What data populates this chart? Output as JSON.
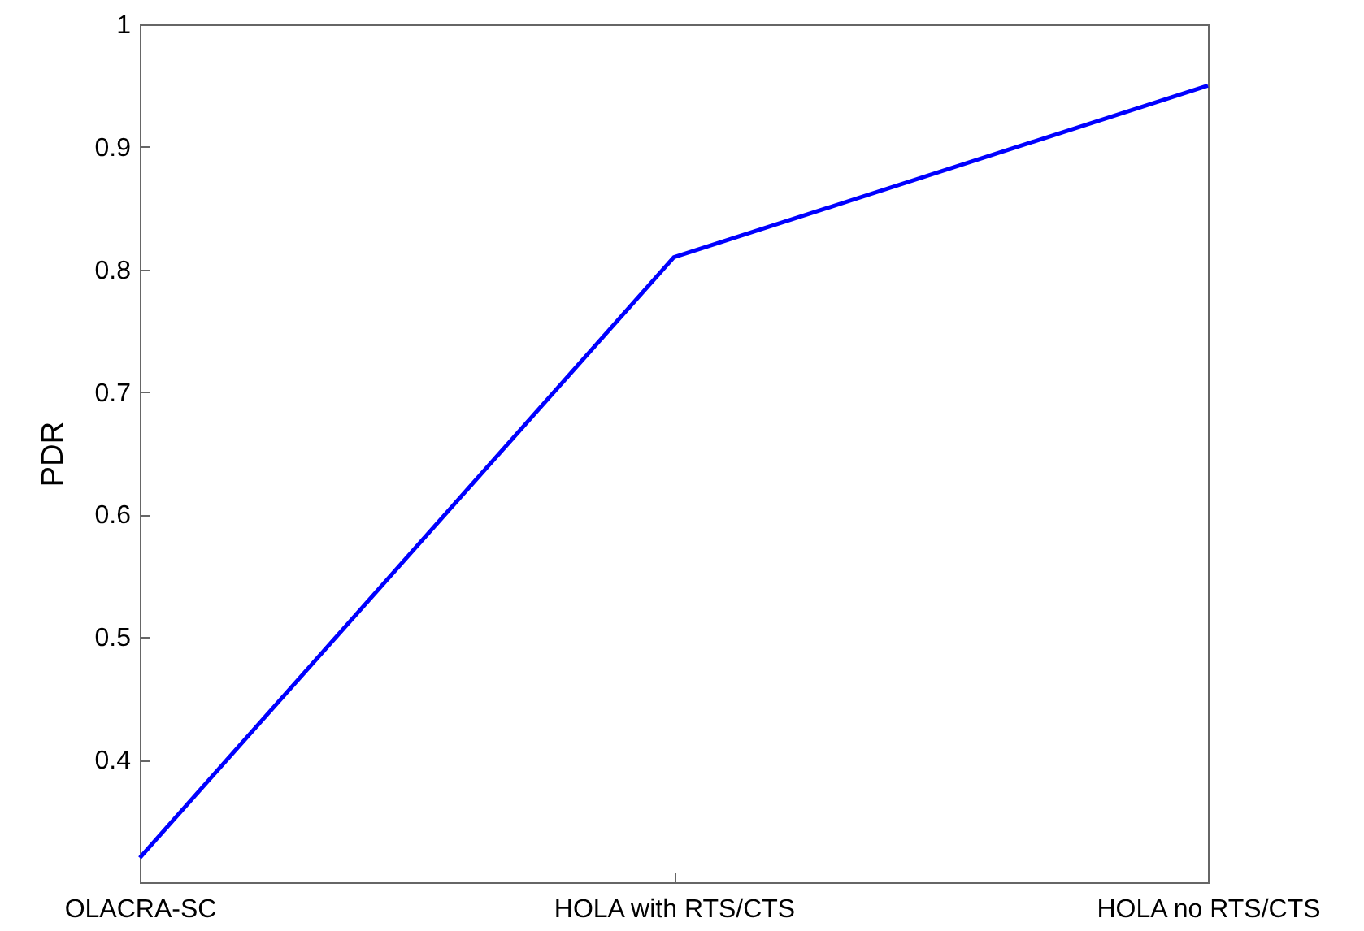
{
  "chart_data": {
    "type": "line",
    "ylabel": "PDR",
    "categories": [
      "OLACRA-SC",
      "HOLA with RTS/CTS",
      "HOLA no RTS/CTS"
    ],
    "series": [
      {
        "color": "#0000ff",
        "values": [
          0.32,
          0.81,
          0.95
        ]
      }
    ],
    "ylim": [
      0.3,
      1
    ],
    "yticks": [
      0.4,
      0.5,
      0.6,
      0.7,
      0.8,
      0.9,
      1
    ],
    "grid": false,
    "marker": "none",
    "line_style": "solid"
  }
}
